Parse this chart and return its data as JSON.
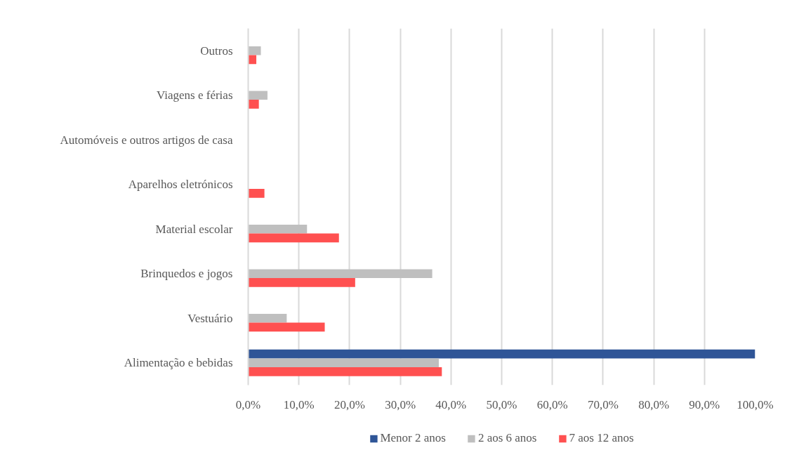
{
  "chart_data": {
    "type": "bar",
    "orientation": "horizontal",
    "categories": [
      "Outros",
      "Viagens e férias",
      "Automóveis e outros artigos de casa",
      "Aparelhos eletrónicos",
      "Material escolar",
      "Brinquedos e jogos",
      "Vestuário",
      "Alimentação e bebidas"
    ],
    "series": [
      {
        "name": "Menor 2 anos",
        "color": "#2f5597",
        "values": [
          null,
          null,
          null,
          null,
          null,
          null,
          null,
          100
        ]
      },
      {
        "name": "2 aos 6 anos",
        "color": "#bfbfbf",
        "values": [
          2.5,
          3.8,
          null,
          null,
          11.6,
          36.3,
          7.6,
          37.6
        ]
      },
      {
        "name": "7 aos 12 anos",
        "color": "#ff5050",
        "values": [
          1.6,
          2.1,
          null,
          3.2,
          17.9,
          21.1,
          15.1,
          38.2
        ]
      }
    ],
    "xlim": [
      0,
      100
    ],
    "xticks": [
      {
        "value": 0,
        "label": "0,0%"
      },
      {
        "value": 10,
        "label": "10,0%"
      },
      {
        "value": 20,
        "label": "20,0%"
      },
      {
        "value": 30,
        "label": "30,0%"
      },
      {
        "value": 40,
        "label": "40,0%"
      },
      {
        "value": 50,
        "label": "50,0%"
      },
      {
        "value": 60,
        "label": "60,0%"
      },
      {
        "value": 70,
        "label": "70,0%"
      },
      {
        "value": 80,
        "label": "80,0%"
      },
      {
        "value": 90,
        "label": "90,0%"
      },
      {
        "value": 100,
        "label": "100,0%"
      }
    ],
    "grid": "x",
    "legend": "bottom"
  }
}
